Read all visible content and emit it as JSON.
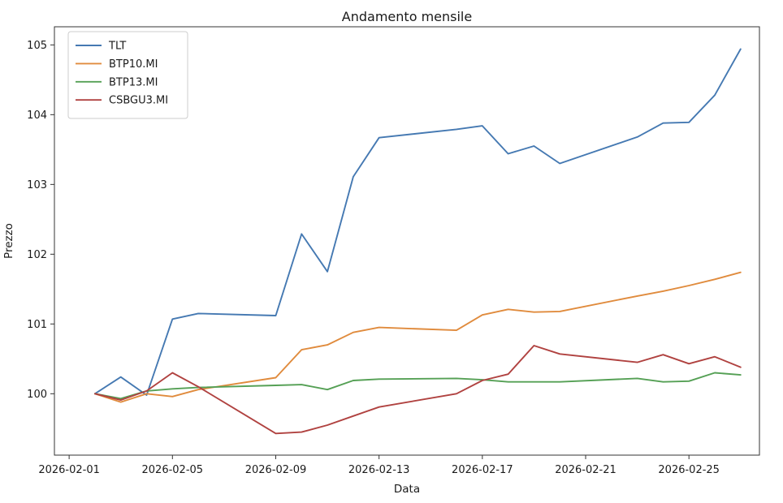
{
  "figure": {
    "background": "#ffffff"
  },
  "style": {
    "axis_color": "#333333",
    "text_color": "#1a1a1a",
    "legend_border": "#cccccc",
    "legend_fill_opacity": 0.85,
    "line_width": 1.9
  },
  "chart_data": {
    "type": "line",
    "title": "Andamento mensile",
    "xlabel": "Data",
    "ylabel": "Prezzo",
    "grid": false,
    "legend_position": "upper left",
    "x_dates": [
      "2026-02-02",
      "2026-02-03",
      "2026-02-04",
      "2026-02-05",
      "2026-02-06",
      "2026-02-09",
      "2026-02-10",
      "2026-02-11",
      "2026-02-12",
      "2026-02-13",
      "2026-02-16",
      "2026-02-17",
      "2026-02-18",
      "2026-02-19",
      "2026-02-20",
      "2026-02-23",
      "2026-02-24",
      "2026-02-25",
      "2026-02-26",
      "2026-02-27"
    ],
    "x_day_of_month": [
      2,
      3,
      4,
      5,
      6,
      9,
      10,
      11,
      12,
      13,
      16,
      17,
      18,
      19,
      20,
      23,
      24,
      25,
      26,
      27
    ],
    "series": [
      {
        "name": "TLT",
        "color": "#4579b2",
        "values": [
          100.0,
          100.24,
          99.98,
          101.07,
          101.15,
          101.12,
          102.29,
          101.75,
          103.11,
          103.67,
          103.79,
          103.84,
          103.44,
          103.55,
          103.3,
          103.68,
          103.88,
          103.89,
          104.28,
          104.94
        ]
      },
      {
        "name": "BTP10.MI",
        "color": "#e08b3d",
        "values": [
          100.0,
          99.88,
          100.0,
          99.96,
          100.06,
          100.23,
          100.63,
          100.7,
          100.88,
          100.95,
          100.91,
          101.13,
          101.21,
          101.17,
          101.18,
          101.4,
          101.47,
          101.55,
          101.64,
          101.74
        ]
      },
      {
        "name": "BTP13.MI",
        "color": "#55a055",
        "values": [
          100.0,
          99.93,
          100.04,
          100.07,
          100.09,
          100.12,
          100.13,
          100.06,
          100.19,
          100.21,
          100.22,
          100.2,
          100.17,
          100.17,
          100.17,
          100.22,
          100.17,
          100.18,
          100.3,
          100.27
        ]
      },
      {
        "name": "CSBGU3.MI",
        "color": "#b04240",
        "values": [
          100.0,
          99.91,
          100.04,
          100.3,
          100.1,
          99.43,
          99.45,
          99.55,
          99.68,
          99.81,
          100.0,
          100.19,
          100.28,
          100.69,
          100.57,
          100.45,
          100.56,
          100.43,
          100.53,
          100.38
        ]
      }
    ],
    "x_ticks": [
      {
        "day": 1,
        "label": "2026-02-01"
      },
      {
        "day": 5,
        "label": "2026-02-05"
      },
      {
        "day": 9,
        "label": "2026-02-09"
      },
      {
        "day": 13,
        "label": "2026-02-13"
      },
      {
        "day": 17,
        "label": "2026-02-17"
      },
      {
        "day": 21,
        "label": "2026-02-21"
      },
      {
        "day": 25,
        "label": "2026-02-25"
      }
    ],
    "y_ticks": [
      100,
      101,
      102,
      103,
      104,
      105
    ],
    "xlim_days": [
      0.43,
      27.73
    ],
    "ylim": [
      99.12,
      105.26
    ]
  }
}
